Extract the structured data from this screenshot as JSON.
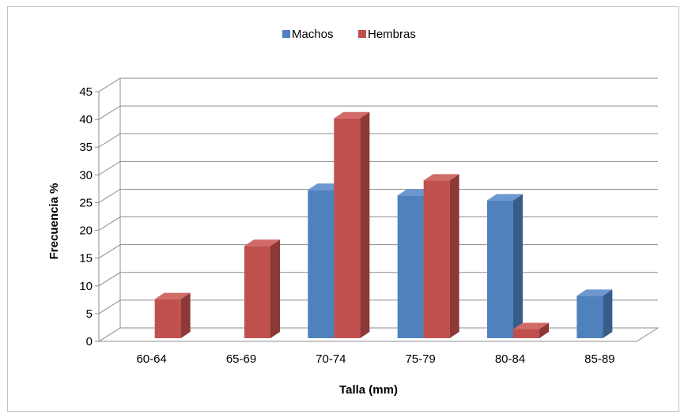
{
  "chart_data": {
    "type": "bar",
    "title": "",
    "xlabel": "Talla (mm)",
    "ylabel": "Frecuencia %",
    "ylim": [
      0,
      45
    ],
    "yticks": [
      0,
      5,
      10,
      15,
      20,
      25,
      30,
      35,
      40,
      45
    ],
    "categories": [
      "60-64",
      "65-69",
      "70-74",
      "75-79",
      "80-84",
      "85-89"
    ],
    "series": [
      {
        "name": "Machos",
        "values": [
          0,
          0,
          27.3,
          26.3,
          25.4,
          8.2
        ],
        "color": "#4f81bd",
        "side": "#385d8a",
        "top": "#6d97cf"
      },
      {
        "name": "Hembras",
        "values": [
          7.6,
          17.2,
          40.2,
          29.0,
          2.2,
          0
        ],
        "color": "#c0504d",
        "side": "#8c3836",
        "top": "#d16b68"
      }
    ],
    "grid": true,
    "legend_position": "top",
    "style": "3d-clustered-column"
  }
}
